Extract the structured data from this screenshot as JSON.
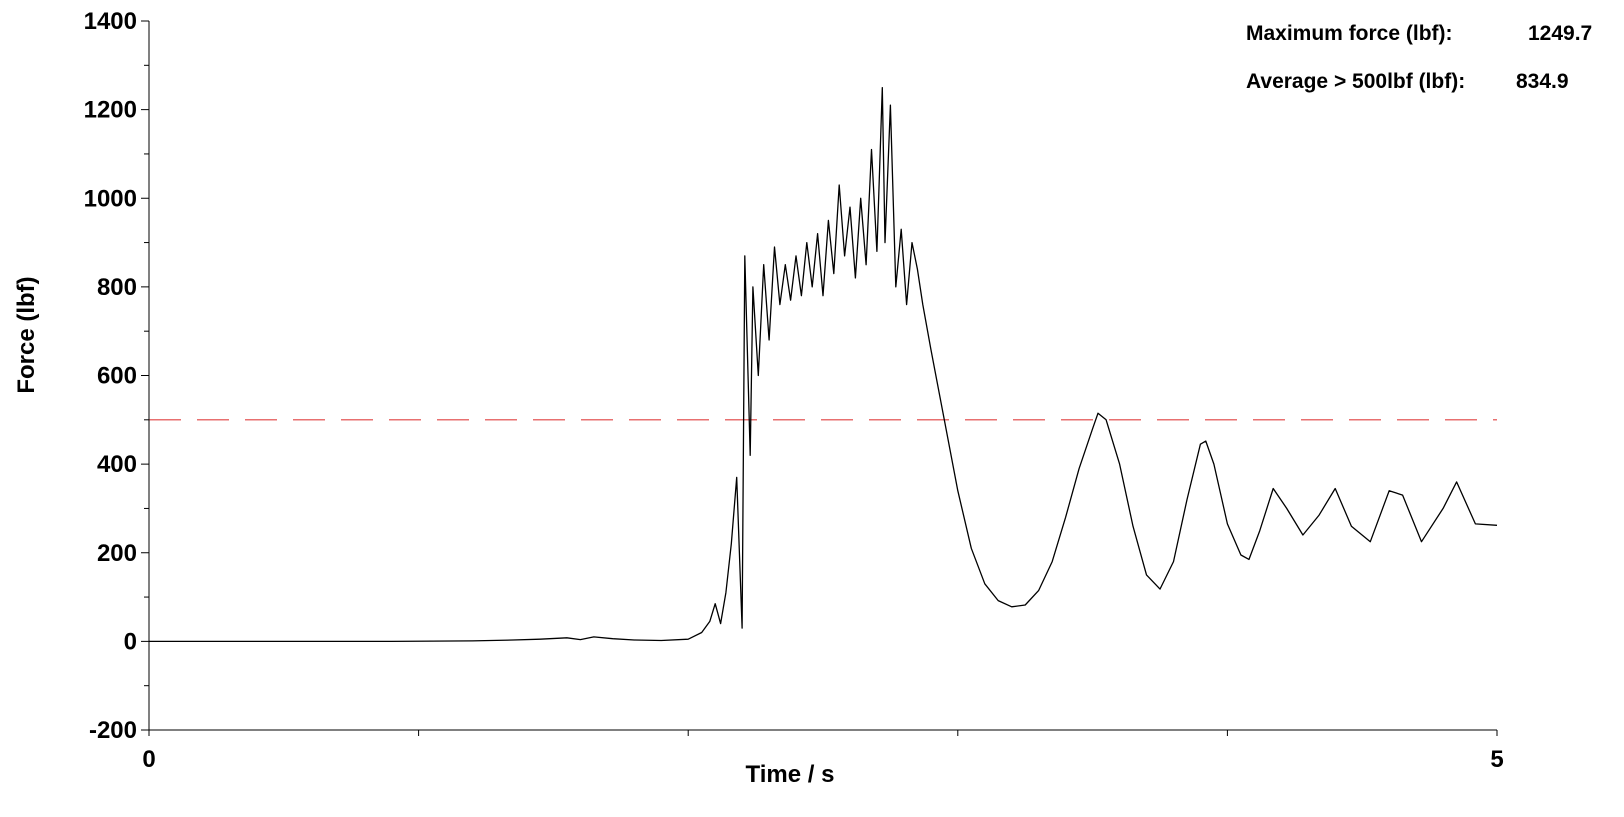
{
  "chart_data": {
    "type": "line",
    "title": "",
    "xlabel": "Time / s",
    "ylabel": "Force (lbf)",
    "xlim": [
      0,
      5
    ],
    "ylim": [
      -200,
      1400
    ],
    "x_tick_labels": [
      "0",
      "5"
    ],
    "y_tick_labels": [
      "-200",
      "0",
      "200",
      "400",
      "600",
      "800",
      "1000",
      "1200",
      "1400"
    ],
    "grid": false,
    "threshold": {
      "value": 500,
      "color": "#e04040",
      "style": "dashed"
    },
    "annotations": [
      {
        "label": "Maximum force (lbf):",
        "value": "1249.7"
      },
      {
        "label": "Average > 500lbf (lbf):",
        "value": "834.9"
      }
    ],
    "series": [
      {
        "color": "#000000",
        "points": [
          [
            0.0,
            0
          ],
          [
            0.3,
            0
          ],
          [
            0.6,
            0
          ],
          [
            0.9,
            0
          ],
          [
            1.2,
            1
          ],
          [
            1.35,
            3
          ],
          [
            1.45,
            5
          ],
          [
            1.55,
            8
          ],
          [
            1.6,
            4
          ],
          [
            1.65,
            10
          ],
          [
            1.72,
            6
          ],
          [
            1.8,
            3
          ],
          [
            1.9,
            2
          ],
          [
            2.0,
            5
          ],
          [
            2.05,
            20
          ],
          [
            2.08,
            45
          ],
          [
            2.1,
            85
          ],
          [
            2.12,
            40
          ],
          [
            2.14,
            110
          ],
          [
            2.16,
            220
          ],
          [
            2.18,
            370
          ],
          [
            2.2,
            30
          ],
          [
            2.21,
            870
          ],
          [
            2.23,
            420
          ],
          [
            2.24,
            800
          ],
          [
            2.26,
            600
          ],
          [
            2.28,
            850
          ],
          [
            2.3,
            680
          ],
          [
            2.32,
            890
          ],
          [
            2.34,
            760
          ],
          [
            2.36,
            850
          ],
          [
            2.38,
            770
          ],
          [
            2.4,
            870
          ],
          [
            2.42,
            780
          ],
          [
            2.44,
            900
          ],
          [
            2.46,
            800
          ],
          [
            2.48,
            920
          ],
          [
            2.5,
            780
          ],
          [
            2.52,
            950
          ],
          [
            2.54,
            830
          ],
          [
            2.56,
            1030
          ],
          [
            2.58,
            870
          ],
          [
            2.6,
            980
          ],
          [
            2.62,
            820
          ],
          [
            2.64,
            1000
          ],
          [
            2.66,
            850
          ],
          [
            2.68,
            1110
          ],
          [
            2.7,
            880
          ],
          [
            2.72,
            1249.7
          ],
          [
            2.73,
            900
          ],
          [
            2.75,
            1210
          ],
          [
            2.77,
            800
          ],
          [
            2.79,
            930
          ],
          [
            2.81,
            760
          ],
          [
            2.83,
            900
          ],
          [
            2.85,
            840
          ],
          [
            2.87,
            760
          ],
          [
            2.9,
            660
          ],
          [
            2.95,
            500
          ],
          [
            3.0,
            340
          ],
          [
            3.05,
            210
          ],
          [
            3.1,
            130
          ],
          [
            3.15,
            92
          ],
          [
            3.2,
            78
          ],
          [
            3.25,
            82
          ],
          [
            3.3,
            115
          ],
          [
            3.35,
            180
          ],
          [
            3.4,
            280
          ],
          [
            3.45,
            390
          ],
          [
            3.5,
            480
          ],
          [
            3.52,
            515
          ],
          [
            3.55,
            500
          ],
          [
            3.6,
            400
          ],
          [
            3.65,
            260
          ],
          [
            3.7,
            150
          ],
          [
            3.75,
            118
          ],
          [
            3.8,
            180
          ],
          [
            3.85,
            320
          ],
          [
            3.9,
            445
          ],
          [
            3.92,
            452
          ],
          [
            3.95,
            400
          ],
          [
            4.0,
            265
          ],
          [
            4.05,
            195
          ],
          [
            4.08,
            185
          ],
          [
            4.12,
            250
          ],
          [
            4.17,
            345
          ],
          [
            4.22,
            300
          ],
          [
            4.28,
            240
          ],
          [
            4.34,
            285
          ],
          [
            4.4,
            345
          ],
          [
            4.46,
            260
          ],
          [
            4.53,
            225
          ],
          [
            4.6,
            340
          ],
          [
            4.65,
            330
          ],
          [
            4.72,
            225
          ],
          [
            4.8,
            300
          ],
          [
            4.85,
            360
          ],
          [
            4.92,
            265
          ],
          [
            5.0,
            262
          ]
        ]
      }
    ]
  }
}
